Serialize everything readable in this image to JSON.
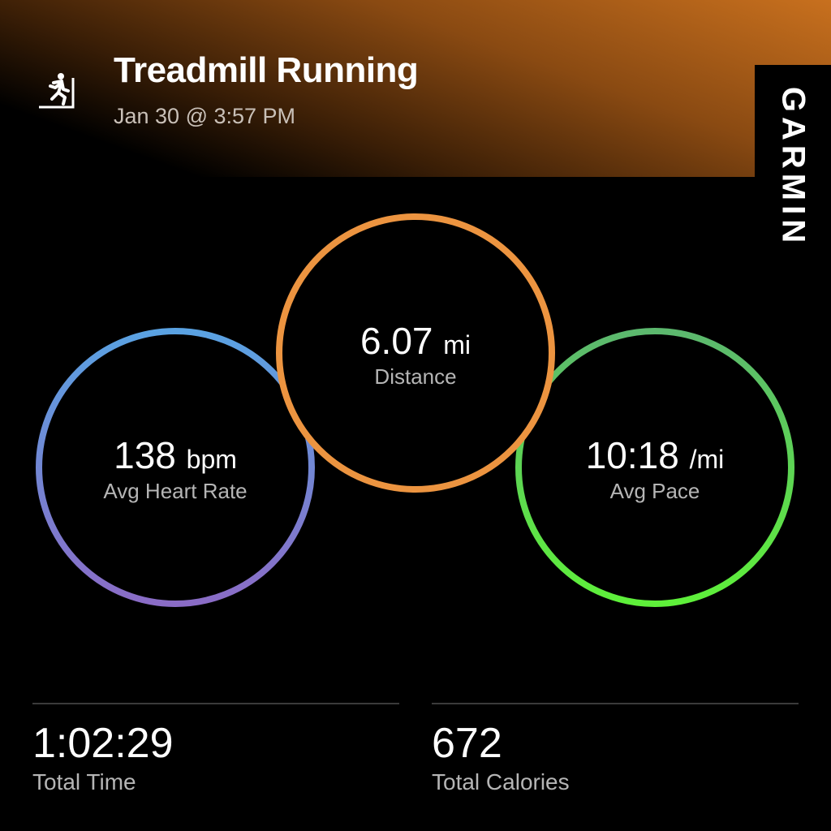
{
  "header": {
    "title": "Treadmill Running",
    "date": "Jan 30 @ 3:57 PM",
    "activity_icon": "treadmill-running-icon",
    "brand": "GARMIN"
  },
  "colors": {
    "heart_rate_ring": [
      "#5aa2e2",
      "#8a6cc6"
    ],
    "distance_ring": "#ec9440",
    "pace_ring": [
      "#5cb86e",
      "#5ef03a"
    ],
    "header_accent": "#c8701e"
  },
  "metrics": {
    "heart_rate": {
      "value": "138",
      "unit": "bpm",
      "label": "Avg Heart Rate"
    },
    "distance": {
      "value": "6.07",
      "unit": "mi",
      "label": "Distance"
    },
    "pace": {
      "value": "10:18",
      "unit": "/mi",
      "label": "Avg Pace"
    }
  },
  "stats": [
    {
      "value": "1:02:29",
      "label": "Total Time"
    },
    {
      "value": "672",
      "label": "Total Calories"
    }
  ]
}
